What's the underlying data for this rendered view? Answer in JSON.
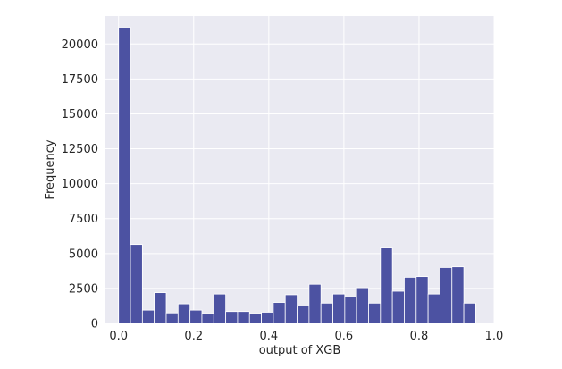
{
  "chart_data": {
    "type": "bar",
    "title": "",
    "xlabel": "output of XGB",
    "ylabel": "Frequency",
    "xlim": [
      -0.035,
      1.0
    ],
    "ylim": [
      0,
      22000
    ],
    "grid": true,
    "colors": {
      "background": "#eaeaf2",
      "grid": "#ffffff",
      "bar": "#4c52a2",
      "bar_edge": "#ffffff"
    },
    "bins": {
      "start": 0.0,
      "width": 0.0317,
      "counts": [
        21200,
        5650,
        950,
        2200,
        750,
        1400,
        950,
        700,
        2100,
        850,
        850,
        700,
        800,
        1500,
        2050,
        1250,
        2800,
        1450,
        2100,
        1950,
        2550,
        1450,
        5400,
        2300,
        3300,
        3350,
        2100,
        4000,
        4050,
        1450
      ]
    },
    "x_ticks": [
      {
        "value": 0.0,
        "label": "0.0"
      },
      {
        "value": 0.2,
        "label": "0.2"
      },
      {
        "value": 0.4,
        "label": "0.4"
      },
      {
        "value": 0.6,
        "label": "0.6"
      },
      {
        "value": 0.8,
        "label": "0.8"
      },
      {
        "value": 1.0,
        "label": "1.0"
      }
    ],
    "y_ticks": [
      {
        "value": 0,
        "label": "0"
      },
      {
        "value": 2500,
        "label": "2500"
      },
      {
        "value": 5000,
        "label": "5000"
      },
      {
        "value": 7500,
        "label": "7500"
      },
      {
        "value": 10000,
        "label": "10000"
      },
      {
        "value": 12500,
        "label": "12500"
      },
      {
        "value": 15000,
        "label": "15000"
      },
      {
        "value": 17500,
        "label": "17500"
      },
      {
        "value": 20000,
        "label": "20000"
      }
    ]
  }
}
